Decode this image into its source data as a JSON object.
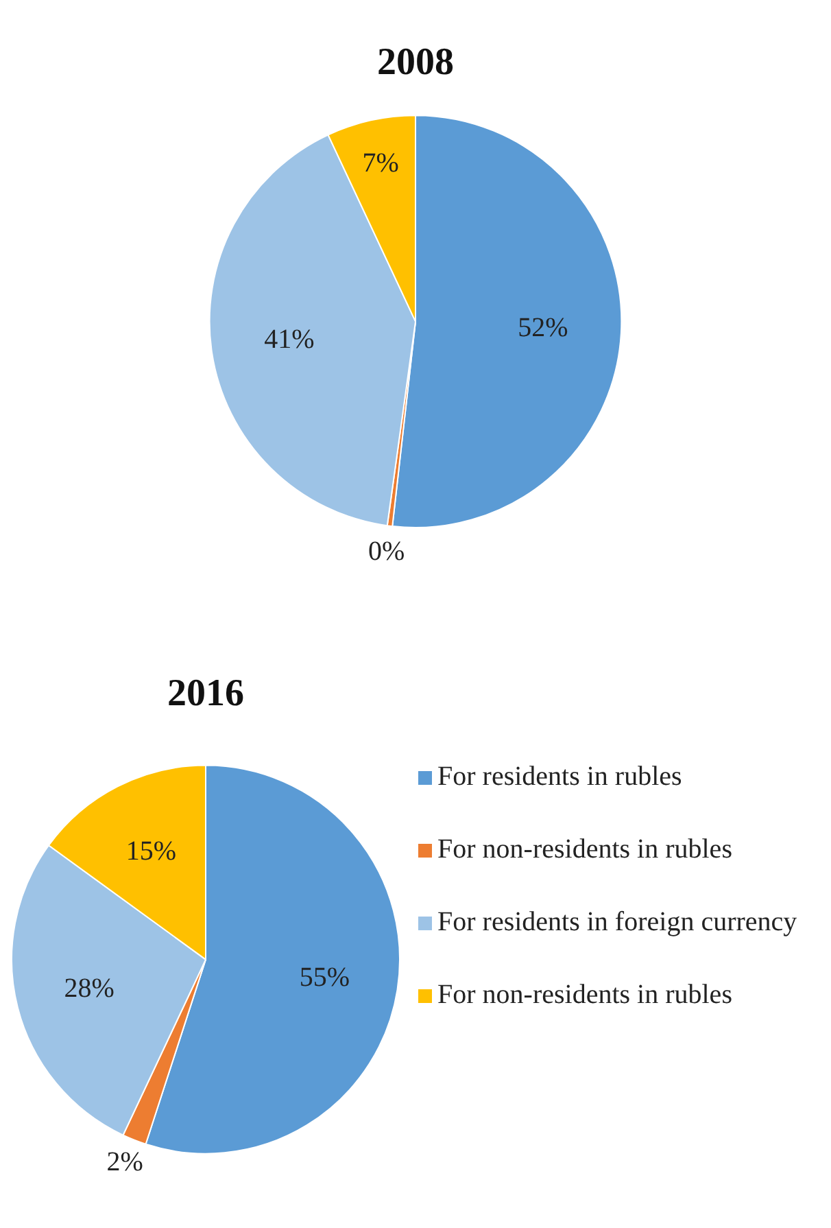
{
  "chart_data": [
    {
      "type": "pie",
      "title": "2008",
      "categories": [
        null,
        null,
        null,
        null
      ],
      "values": [
        52,
        0.4,
        41,
        7
      ],
      "value_labels": [
        "52%",
        "0%",
        "41%",
        "7%"
      ],
      "colors": [
        "#5b9bd5",
        "#ed7d31",
        "#9dc3e6",
        "#ffc000"
      ],
      "legend": false
    },
    {
      "type": "pie",
      "title": "2016",
      "categories": [
        "For residents in rubles",
        "For non-residents in rubles",
        "For residents in foreign currency",
        "For non-residents in rubles"
      ],
      "values": [
        55,
        2,
        28,
        15
      ],
      "value_labels": [
        "55%",
        "2%",
        "28%",
        "15%"
      ],
      "colors": [
        "#5b9bd5",
        "#ed7d31",
        "#9dc3e6",
        "#ffc000"
      ],
      "legend": "right"
    }
  ]
}
